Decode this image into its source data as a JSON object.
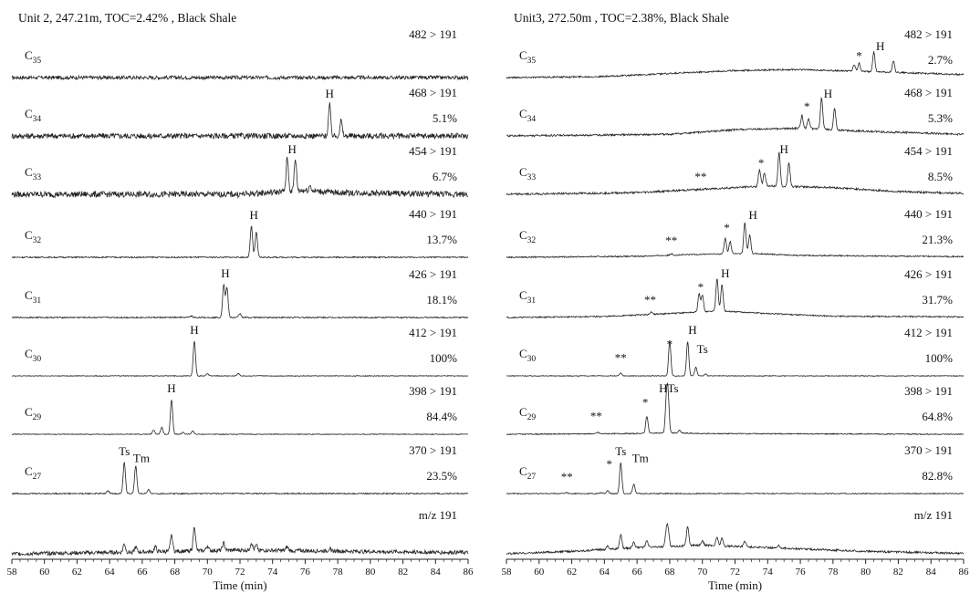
{
  "panels": [
    {
      "title": "Unit 2, 247.21m, TOC=2.42% , Black Shale"
    },
    {
      "title": "Unit3, 272.50m , TOC=2.38%, Black Shale"
    }
  ],
  "axis": {
    "xlabel": "Time (min)",
    "ticks": [
      "58",
      "60",
      "62",
      "64",
      "66",
      "68",
      "70",
      "72",
      "74",
      "76",
      "78",
      "80",
      "82",
      "84",
      "86"
    ]
  },
  "chart_data": [
    {
      "type": "line",
      "title": "Unit 2, 247.21m, TOC=2.42% , Black Shale",
      "xlabel": "Time (min)",
      "xlim": [
        58,
        86
      ],
      "traces": [
        {
          "compound": "C35",
          "sub": "35",
          "transition": "482 > 191",
          "percent": "",
          "noise": 0.09,
          "baseline": [
            [
              58,
              0
            ],
            [
              86,
              0
            ]
          ],
          "peaks": []
        },
        {
          "compound": "C34",
          "sub": "34",
          "transition": "468 > 191",
          "percent": "5.1%",
          "noise": 0.09,
          "baseline": [
            [
              58,
              0
            ],
            [
              86,
              0
            ]
          ],
          "peaks": [
            [
              77.5,
              1
            ],
            [
              78.2,
              0.5
            ]
          ],
          "labels": [
            {
              "text": "H",
              "x": 77.5
            }
          ]
        },
        {
          "compound": "C33",
          "sub": "33",
          "transition": "454 > 191",
          "percent": "6.7%",
          "noise": 0.09,
          "baseline": [
            [
              58,
              0
            ],
            [
              72,
              0
            ],
            [
              76,
              0.12
            ],
            [
              78,
              0.05
            ],
            [
              86,
              0
            ]
          ],
          "peaks": [
            [
              74.9,
              1
            ],
            [
              75.4,
              0.95
            ],
            [
              76.3,
              0.15
            ]
          ],
          "labels": [
            {
              "text": "H",
              "x": 75.2
            }
          ]
        },
        {
          "compound": "C32",
          "sub": "32",
          "transition": "440 > 191",
          "percent": "13.7%",
          "noise": 0.02,
          "baseline": [
            [
              58,
              0
            ],
            [
              86,
              0
            ]
          ],
          "peaks": [
            [
              72.7,
              1
            ],
            [
              73.0,
              0.8
            ]
          ],
          "labels": [
            {
              "text": "H",
              "x": 72.85
            }
          ]
        },
        {
          "compound": "C31",
          "sub": "31",
          "transition": "426 > 191",
          "percent": "18.1%",
          "noise": 0.02,
          "baseline": [
            [
              58,
              0
            ],
            [
              86,
              0
            ]
          ],
          "peaks": [
            [
              71.0,
              1
            ],
            [
              71.2,
              0.9
            ],
            [
              72.0,
              0.12
            ],
            [
              69.0,
              0.05
            ]
          ],
          "labels": [
            {
              "text": "H",
              "x": 71.1
            }
          ]
        },
        {
          "compound": "C30",
          "sub": "30",
          "transition": "412 > 191",
          "percent": "100%",
          "noise": 0.01,
          "baseline": [
            [
              58,
              0
            ],
            [
              86,
              0
            ]
          ],
          "peaks": [
            [
              69.2,
              1
            ],
            [
              70.0,
              0.06
            ],
            [
              71.9,
              0.07
            ]
          ],
          "labels": [
            {
              "text": "H",
              "x": 69.2
            }
          ]
        },
        {
          "compound": "C29",
          "sub": "29",
          "transition": "398 > 191",
          "percent": "84.4%",
          "noise": 0.01,
          "baseline": [
            [
              58,
              0
            ],
            [
              86,
              0
            ]
          ],
          "peaks": [
            [
              67.8,
              1
            ],
            [
              66.7,
              0.12
            ],
            [
              67.2,
              0.2
            ],
            [
              69.1,
              0.1
            ],
            [
              68.5,
              0.06
            ]
          ],
          "labels": [
            {
              "text": "H",
              "x": 67.8
            }
          ]
        },
        {
          "compound": "C27",
          "sub": "27",
          "transition": "370 > 191",
          "percent": "23.5%",
          "noise": 0.02,
          "baseline": [
            [
              58,
              0
            ],
            [
              86,
              0
            ]
          ],
          "peaks": [
            [
              64.9,
              1
            ],
            [
              65.6,
              0.9
            ],
            [
              63.9,
              0.1
            ],
            [
              66.4,
              0.12
            ]
          ],
          "labels": [
            {
              "text": "Ts",
              "x": 64.9
            },
            {
              "text": "Tm",
              "x": 65.95
            }
          ]
        },
        {
          "compound": "m/z 191",
          "sub": "",
          "transition": "m/z 191",
          "percent": "",
          "noise": 0.08,
          "baseline": [
            [
              58,
              0
            ],
            [
              64,
              0.05
            ],
            [
              72,
              0.15
            ],
            [
              86,
              0.05
            ]
          ],
          "peaks": [
            [
              64.9,
              0.35
            ],
            [
              65.6,
              0.2
            ],
            [
              66.8,
              0.2
            ],
            [
              67.8,
              0.7
            ],
            [
              69.2,
              1
            ],
            [
              70.0,
              0.2
            ],
            [
              71.0,
              0.3
            ],
            [
              72.7,
              0.3
            ],
            [
              73.0,
              0.2
            ],
            [
              74.9,
              0.15
            ],
            [
              77.5,
              0.1
            ]
          ],
          "labels": []
        }
      ]
    },
    {
      "type": "line",
      "title": "Unit3, 272.50m , TOC=2.38%, Black Shale",
      "xlabel": "Time (min)",
      "xlim": [
        58,
        86
      ],
      "traces": [
        {
          "compound": "C35",
          "sub": "35",
          "transition": "482 > 191",
          "percent": "2.7%",
          "noise": 0.04,
          "baseline": [
            [
              58,
              0
            ],
            [
              64,
              0.05
            ],
            [
              68,
              0.2
            ],
            [
              72,
              0.35
            ],
            [
              76,
              0.4
            ],
            [
              80,
              0.3
            ],
            [
              86,
              0.15
            ]
          ],
          "peaks": [
            [
              79.3,
              0.3
            ],
            [
              79.6,
              0.4
            ],
            [
              80.5,
              1
            ],
            [
              81.7,
              0.6
            ]
          ],
          "labels": [
            {
              "text": "*",
              "x": 79.6
            },
            {
              "text": "H",
              "x": 80.9
            }
          ]
        },
        {
          "compound": "C34",
          "sub": "34",
          "transition": "468 > 191",
          "percent": "5.3%",
          "noise": 0.03,
          "baseline": [
            [
              58,
              0
            ],
            [
              68,
              0.05
            ],
            [
              72,
              0.2
            ],
            [
              76,
              0.25
            ],
            [
              80,
              0.15
            ],
            [
              86,
              0.05
            ]
          ],
          "peaks": [
            [
              76.1,
              0.4
            ],
            [
              76.5,
              0.3
            ],
            [
              77.3,
              1
            ],
            [
              78.1,
              0.7
            ]
          ],
          "labels": [
            {
              "text": "*",
              "x": 76.4
            },
            {
              "text": "H",
              "x": 77.7
            }
          ]
        },
        {
          "compound": "C33",
          "sub": "33",
          "transition": "454 > 191",
          "percent": "8.5%",
          "noise": 0.03,
          "baseline": [
            [
              58,
              0
            ],
            [
              66,
              0.05
            ],
            [
              70,
              0.15
            ],
            [
              74,
              0.25
            ],
            [
              78,
              0.2
            ],
            [
              82,
              0.08
            ],
            [
              86,
              0.03
            ]
          ],
          "peaks": [
            [
              73.5,
              0.5
            ],
            [
              73.8,
              0.4
            ],
            [
              74.7,
              1
            ],
            [
              75.3,
              0.7
            ]
          ],
          "labels": [
            {
              "text": "**",
              "x": 69.9
            },
            {
              "text": "*",
              "x": 73.6
            },
            {
              "text": "H",
              "x": 75.0
            }
          ]
        },
        {
          "compound": "C32",
          "sub": "32",
          "transition": "440 > 191",
          "percent": "21.3%",
          "noise": 0.02,
          "baseline": [
            [
              58,
              0
            ],
            [
              66,
              0.03
            ],
            [
              70,
              0.1
            ],
            [
              73,
              0.12
            ],
            [
              76,
              0.06
            ],
            [
              86,
              0.02
            ]
          ],
          "peaks": [
            [
              71.4,
              0.5
            ],
            [
              71.7,
              0.4
            ],
            [
              72.6,
              1
            ],
            [
              72.9,
              0.6
            ],
            [
              68.1,
              0.05
            ]
          ],
          "labels": [
            {
              "text": "**",
              "x": 68.1
            },
            {
              "text": "*",
              "x": 71.5
            },
            {
              "text": "H",
              "x": 73.1
            }
          ]
        },
        {
          "compound": "C31",
          "sub": "31",
          "transition": "426 > 191",
          "percent": "31.7%",
          "noise": 0.02,
          "baseline": [
            [
              58,
              0
            ],
            [
              64,
              0.03
            ],
            [
              68,
              0.12
            ],
            [
              71,
              0.2
            ],
            [
              74,
              0.12
            ],
            [
              78,
              0.04
            ],
            [
              86,
              0.02
            ]
          ],
          "peaks": [
            [
              69.8,
              0.55
            ],
            [
              70.0,
              0.5
            ],
            [
              70.9,
              1
            ],
            [
              71.2,
              0.8
            ],
            [
              66.9,
              0.08
            ]
          ],
          "labels": [
            {
              "text": "**",
              "x": 66.8
            },
            {
              "text": "*",
              "x": 69.9
            },
            {
              "text": "H",
              "x": 71.4
            }
          ]
        },
        {
          "compound": "C30",
          "sub": "30",
          "transition": "412 > 191",
          "percent": "100%",
          "noise": 0.01,
          "baseline": [
            [
              58,
              0
            ],
            [
              86,
              0
            ]
          ],
          "peaks": [
            [
              68.0,
              1
            ],
            [
              69.1,
              1
            ],
            [
              69.6,
              0.25
            ],
            [
              65.0,
              0.08
            ],
            [
              70.2,
              0.05
            ]
          ],
          "labels": [
            {
              "text": "**",
              "x": 65.0
            },
            {
              "text": "*",
              "x": 68.0
            },
            {
              "text": "H",
              "x": 69.4
            },
            {
              "text": "Ts",
              "x": 70.0
            }
          ]
        },
        {
          "compound": "C29",
          "sub": "29",
          "transition": "398 > 191",
          "percent": "64.8%",
          "noise": 0.015,
          "baseline": [
            [
              58,
              0
            ],
            [
              66,
              0.02
            ],
            [
              68,
              0.04
            ],
            [
              70,
              0.02
            ],
            [
              86,
              0
            ]
          ],
          "peaks": [
            [
              66.6,
              0.5
            ],
            [
              67.8,
              0.9
            ],
            [
              67.9,
              0.95
            ],
            [
              63.6,
              0.04
            ],
            [
              68.6,
              0.08
            ]
          ],
          "labels": [
            {
              "text": "**",
              "x": 63.5
            },
            {
              "text": "*",
              "x": 66.5
            },
            {
              "text": "H",
              "x": 67.6
            },
            {
              "text": "Ts",
              "x": 68.2
            }
          ]
        },
        {
          "compound": "C27",
          "sub": "27",
          "transition": "370 > 191",
          "percent": "82.8%",
          "noise": 0.015,
          "baseline": [
            [
              58,
              0
            ],
            [
              86,
              0
            ]
          ],
          "peaks": [
            [
              65.0,
              1
            ],
            [
              65.8,
              0.3
            ],
            [
              64.2,
              0.1
            ],
            [
              61.7,
              0.03
            ],
            [
              63.8,
              0.03
            ]
          ],
          "labels": [
            {
              "text": "**",
              "x": 61.7
            },
            {
              "text": "*",
              "x": 64.3
            },
            {
              "text": "Ts",
              "x": 65.0
            },
            {
              "text": "Tm",
              "x": 66.2
            }
          ]
        },
        {
          "compound": "m/z 191",
          "sub": "",
          "transition": "m/z 191",
          "percent": "",
          "noise": 0.04,
          "baseline": [
            [
              58,
              0
            ],
            [
              62,
              0.1
            ],
            [
              66,
              0.25
            ],
            [
              70,
              0.35
            ],
            [
              74,
              0.25
            ],
            [
              80,
              0.1
            ],
            [
              86,
              0.02
            ]
          ],
          "peaks": [
            [
              64.2,
              0.15
            ],
            [
              65.0,
              0.55
            ],
            [
              65.8,
              0.25
            ],
            [
              66.6,
              0.25
            ],
            [
              67.8,
              0.6
            ],
            [
              67.9,
              0.6
            ],
            [
              69.1,
              0.8
            ],
            [
              70.0,
              0.2
            ],
            [
              70.9,
              0.35
            ],
            [
              71.2,
              0.3
            ],
            [
              72.6,
              0.25
            ],
            [
              74.7,
              0.1
            ]
          ],
          "labels": []
        }
      ]
    }
  ]
}
